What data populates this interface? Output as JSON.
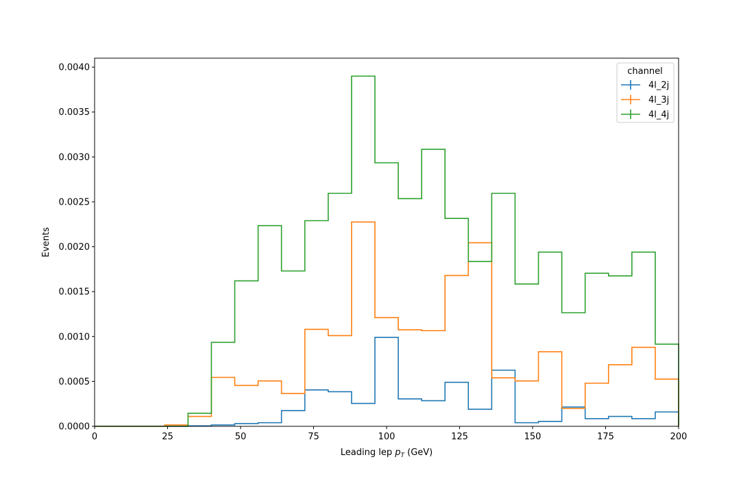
{
  "chart_data": {
    "type": "histogram-step",
    "xlabel": {
      "main": "Leading lep ",
      "symbol": "p",
      "sub": "T",
      "unit": " (GeV)"
    },
    "ylabel": "Events",
    "xlim": [
      0,
      200
    ],
    "ylim": [
      0,
      0.0041
    ],
    "x_ticks": [
      0,
      25,
      50,
      75,
      100,
      125,
      150,
      175,
      200
    ],
    "y_ticks": [
      0.0,
      0.0005,
      0.001,
      0.0015,
      0.002,
      0.0025,
      0.003,
      0.0035,
      0.004
    ],
    "y_tick_labels": [
      "0.0000",
      "0.0005",
      "0.0010",
      "0.0015",
      "0.0020",
      "0.0025",
      "0.0030",
      "0.0035",
      "0.0040"
    ],
    "grid": false,
    "legend": {
      "title": "channel",
      "placement": "top-right"
    },
    "bin_edges": [
      0,
      8,
      16,
      24,
      32,
      40,
      48,
      56,
      64,
      72,
      80,
      88,
      96,
      104,
      112,
      120,
      128,
      136,
      144,
      152,
      160,
      168,
      176,
      184,
      192,
      200
    ],
    "series": [
      {
        "name": "4l_2j",
        "color": "#1f77b4",
        "values": [
          0,
          0,
          0,
          0,
          5e-06,
          1.5e-05,
          3e-05,
          4e-05,
          0.000175,
          0.000405,
          0.000385,
          0.000255,
          0.00099,
          0.000305,
          0.000285,
          0.00049,
          0.00019,
          0.000625,
          4e-05,
          5.5e-05,
          0.000215,
          8.5e-05,
          0.00011,
          8.5e-05,
          0.00016
        ]
      },
      {
        "name": "4l_3j",
        "color": "#ff7f0e",
        "values": [
          0,
          0,
          0,
          1.5e-05,
          0.00011,
          0.000545,
          0.000455,
          0.000505,
          0.000365,
          0.00108,
          0.00101,
          0.002275,
          0.00121,
          0.001075,
          0.001065,
          0.00168,
          0.002045,
          0.00054,
          0.000505,
          0.00083,
          0.0002,
          0.00048,
          0.000685,
          0.00088,
          0.000525
        ]
      },
      {
        "name": "4l_4j",
        "color": "#2ca02c",
        "values": [
          0,
          0,
          0,
          0,
          0.000145,
          0.000935,
          0.00162,
          0.002235,
          0.00173,
          0.00229,
          0.002595,
          0.0039,
          0.002935,
          0.002535,
          0.003085,
          0.002315,
          0.001835,
          0.002595,
          0.001585,
          0.00194,
          0.001265,
          0.001705,
          0.001675,
          0.00194,
          0.000915
        ]
      }
    ]
  }
}
